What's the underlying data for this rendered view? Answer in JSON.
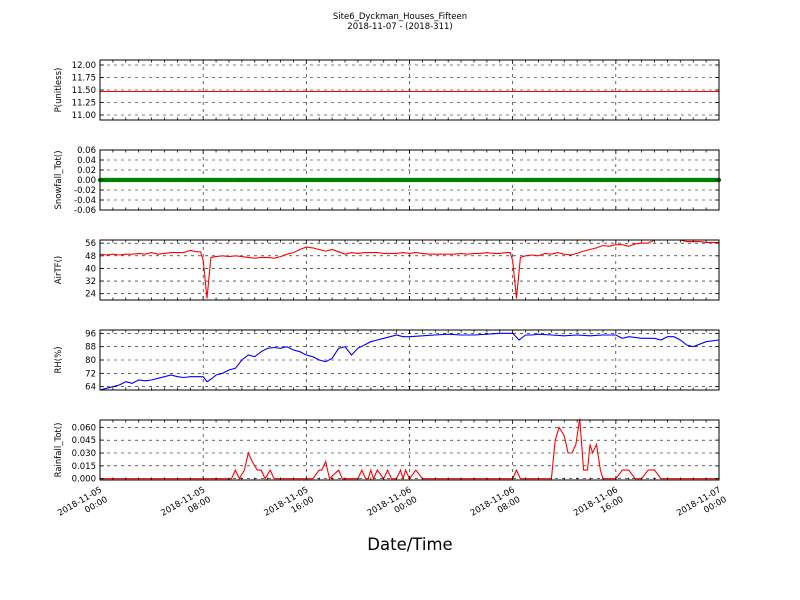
{
  "figure": {
    "title_line1": "Site6_Dyckman_Houses_Fifteen",
    "title_line2": "2018-11-07 - (2018-311)",
    "xlabel": "Date/Time"
  },
  "x_ticks": [
    {
      "line1": "2018-11-05",
      "line2": "00:00",
      "hour": 0
    },
    {
      "line1": "2018-11-05",
      "line2": "08:00",
      "hour": 8
    },
    {
      "line1": "2018-11-05",
      "line2": "16:00",
      "hour": 16
    },
    {
      "line1": "2018-11-06",
      "line2": "00:00",
      "hour": 24
    },
    {
      "line1": "2018-11-06",
      "line2": "08:00",
      "hour": 32
    },
    {
      "line1": "2018-11-06",
      "line2": "16:00",
      "hour": 40
    },
    {
      "line1": "2018-11-07",
      "line2": "00:00",
      "hour": 48
    }
  ],
  "chart_data": [
    {
      "type": "line",
      "ylabel": "P(unitless)",
      "ylim": [
        10.9,
        12.1
      ],
      "yticks": [
        "12.00",
        "11.75",
        "11.50",
        "11.25",
        "11.00"
      ],
      "ytick_values": [
        12.0,
        11.75,
        11.5,
        11.25,
        11.0
      ],
      "color": "#ff0000",
      "grid": true,
      "series": [
        {
          "x_hours": [
            0,
            48
          ],
          "values": [
            11.47,
            11.47
          ]
        }
      ]
    },
    {
      "type": "line",
      "ylabel": "Snowfall_Tot()",
      "ylim": [
        -0.06,
        0.06
      ],
      "yticks": [
        "0.06",
        "0.04",
        "0.02",
        "0.00",
        "-0.02",
        "-0.04",
        "-0.06"
      ],
      "ytick_values": [
        0.06,
        0.04,
        0.02,
        0.0,
        -0.02,
        -0.04,
        -0.06
      ],
      "color": "#008000",
      "markers": true,
      "grid": true,
      "series": [
        {
          "x_hours": [
            0,
            48
          ],
          "values": [
            0,
            0
          ]
        }
      ]
    },
    {
      "type": "line",
      "ylabel": "AirTF()",
      "ylim": [
        20,
        58
      ],
      "yticks": [
        "56",
        "48",
        "40",
        "32",
        "24"
      ],
      "ytick_values": [
        56,
        48,
        40,
        32,
        24
      ],
      "color": "#ff0000",
      "grid": true,
      "series": [
        {
          "x_hours": [
            0,
            0.5,
            1,
            1.5,
            2,
            2.5,
            3,
            3.5,
            4,
            4.5,
            5,
            5.5,
            6,
            6.5,
            7,
            7.5,
            7.8,
            8,
            8.3,
            8.6,
            9,
            9.5,
            10,
            10.5,
            11,
            11.5,
            12,
            12.5,
            13,
            13.5,
            14,
            14.5,
            15,
            15.5,
            16,
            16.5,
            17,
            17.5,
            18,
            18.5,
            19,
            19.5,
            20,
            20.5,
            21,
            21.5,
            22,
            22.5,
            23,
            23.5,
            24,
            24.5,
            25,
            25.5,
            26,
            26.5,
            27,
            27.5,
            28,
            28.5,
            29,
            29.5,
            30,
            30.5,
            31,
            31.5,
            31.8,
            32,
            32.3,
            32.6,
            33,
            33.5,
            34,
            34.5,
            35,
            35.5,
            36,
            36.5,
            37,
            37.5,
            38,
            38.5,
            39,
            39.5,
            40,
            40.5,
            41,
            41.5,
            42,
            42.5,
            43,
            43.5,
            44,
            44.5,
            45,
            45.5,
            46,
            46.5,
            47,
            47.5,
            48
          ],
          "values": [
            49,
            48.5,
            49,
            48.5,
            49,
            49,
            49.5,
            49,
            50,
            49,
            49.5,
            50,
            50,
            50,
            51.5,
            50.5,
            50.5,
            45,
            21,
            47,
            47.5,
            48,
            47.5,
            48,
            47.5,
            47,
            46.5,
            47,
            47,
            46.5,
            47.5,
            49,
            50,
            52,
            53.5,
            53,
            52,
            51,
            52,
            50.5,
            49,
            50,
            49.5,
            50,
            50,
            50,
            49.5,
            49.5,
            49.5,
            50,
            49.5,
            50,
            49.5,
            49,
            49,
            49,
            49,
            49,
            49.5,
            49,
            49.5,
            49.5,
            50,
            49.5,
            49.5,
            50,
            50,
            45,
            21,
            47,
            48,
            48.5,
            48,
            49.5,
            49,
            50,
            49,
            48.5,
            49.5,
            51,
            52,
            53,
            54.5,
            54,
            55,
            55,
            54,
            55.5,
            56,
            56,
            58,
            58,
            58,
            58,
            58,
            57,
            57,
            57,
            56.5,
            56.5,
            56.5
          ]
        }
      ]
    },
    {
      "type": "line",
      "ylabel": "RH(%)",
      "ylim": [
        62,
        98
      ],
      "yticks": [
        "96",
        "88",
        "80",
        "72",
        "64"
      ],
      "ytick_values": [
        96,
        88,
        80,
        72,
        64
      ],
      "color": "#0000ff",
      "grid": true,
      "series": [
        {
          "x_hours": [
            0,
            0.5,
            1,
            1.5,
            2,
            2.5,
            3,
            3.5,
            4,
            4.5,
            5,
            5.5,
            6,
            6.5,
            7,
            7.5,
            8,
            8.3,
            8.7,
            9,
            9.5,
            10,
            10.5,
            11,
            11.5,
            12,
            12.5,
            13,
            13.5,
            14,
            14.5,
            15,
            15.5,
            16,
            16.5,
            17,
            17.5,
            18,
            18.5,
            19,
            19.5,
            20,
            20.5,
            21,
            21.5,
            22,
            22.5,
            23,
            23.5,
            24,
            25,
            26,
            27,
            28,
            29,
            30,
            31,
            31.5,
            32,
            32.5,
            33,
            33.5,
            34,
            35,
            36,
            37,
            38,
            39,
            40,
            40.5,
            41,
            42,
            42.5,
            43,
            43.5,
            44,
            44.5,
            45,
            45.5,
            46,
            47,
            48
          ],
          "values": [
            62,
            63,
            64,
            65,
            67,
            66,
            68,
            67.5,
            68,
            69,
            70,
            71,
            70,
            69.5,
            70,
            70,
            70,
            67,
            69,
            71,
            72,
            74,
            75,
            80,
            83,
            82,
            85,
            87,
            87.5,
            87,
            88,
            86,
            85,
            83,
            82,
            80,
            79,
            81,
            87,
            88,
            83,
            87,
            89,
            91,
            92,
            93,
            94,
            95,
            94,
            94,
            94.5,
            95,
            95.5,
            95,
            95,
            95.5,
            96,
            96,
            96,
            92,
            95,
            95,
            95.5,
            95,
            94.5,
            95,
            94.5,
            95,
            95,
            93,
            94,
            93,
            93,
            93,
            92,
            94,
            94,
            92,
            89,
            88,
            91,
            92
          ]
        }
      ]
    },
    {
      "type": "line",
      "ylabel": "Rainfall_Tot()",
      "ylim": [
        -0.0015,
        0.0685
      ],
      "yticks": [
        "0.060",
        "0.045",
        "0.030",
        "0.015",
        "0.000"
      ],
      "ytick_values": [
        0.06,
        0.045,
        0.03,
        0.015,
        0.0
      ],
      "color": "#ff0000",
      "grid": true,
      "series": [
        {
          "x_hours": [
            0,
            10.2,
            10.5,
            10.8,
            11.2,
            11.5,
            11.8,
            12.2,
            12.5,
            12.8,
            13.2,
            13.5,
            16,
            16.5,
            17,
            17.2,
            17.5,
            17.8,
            18.5,
            18.8,
            19,
            20,
            20.3,
            20.6,
            20.8,
            21,
            21.2,
            21.5,
            22,
            22.3,
            22.6,
            23,
            23.3,
            23.5,
            23.7,
            24,
            24.5,
            25,
            32,
            32.3,
            32.6,
            35,
            35.3,
            35.6,
            36,
            36.3,
            36.6,
            36.9,
            37.2,
            37.5,
            37.8,
            38,
            38.2,
            38.5,
            38.8,
            39,
            39.5,
            40,
            40.5,
            41,
            41.5,
            42,
            42.5,
            43,
            43.5,
            44,
            48
          ],
          "values": [
            0,
            0,
            0.01,
            0,
            0.01,
            0.03,
            0.02,
            0.01,
            0.01,
            0,
            0.01,
            0,
            0,
            0,
            0.01,
            0.01,
            0.02,
            0,
            0.01,
            0,
            0,
            0,
            0.01,
            0,
            0,
            0.01,
            0,
            0.01,
            0,
            0.01,
            0,
            0,
            0.01,
            0,
            0.01,
            0,
            0.01,
            0,
            0,
            0.01,
            0,
            0,
            0.045,
            0.06,
            0.05,
            0.03,
            0.03,
            0.04,
            0.07,
            0.01,
            0.01,
            0.04,
            0.03,
            0.04,
            0.01,
            0,
            0,
            0,
            0.01,
            0.01,
            0,
            0,
            0.01,
            0.01,
            0,
            0,
            0
          ]
        }
      ]
    }
  ]
}
